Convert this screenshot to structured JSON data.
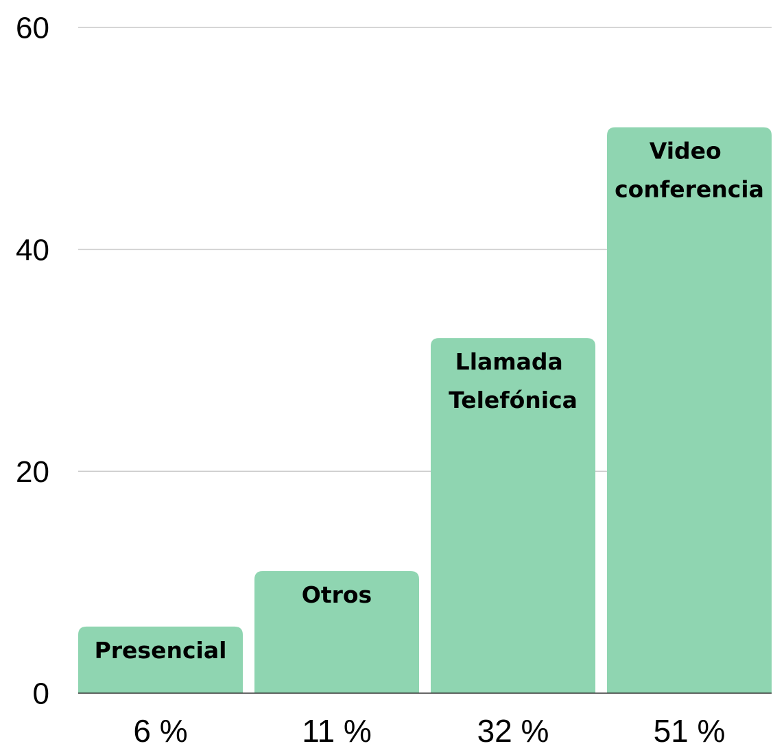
{
  "chart_data": {
    "type": "bar",
    "categories": [
      "Presencial",
      "Otros",
      "Llamada Telefónica",
      "Video conferencia"
    ],
    "values": [
      6,
      11,
      32,
      51
    ],
    "value_labels": [
      "6 %",
      "11 %",
      "32 %",
      "51 %"
    ],
    "color": "#8fd5b1",
    "ylim": [
      0,
      60
    ],
    "yticks": [
      0,
      20,
      40,
      60
    ],
    "grid": true
  }
}
